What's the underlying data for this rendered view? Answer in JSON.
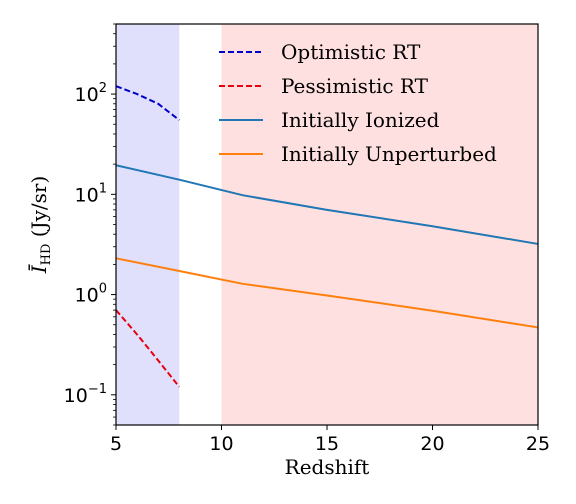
{
  "chart_data": {
    "type": "line",
    "xlabel": "Redshift",
    "ylabel": "Ī_HD (Jy/sr)",
    "ylabel_main": "Ī",
    "ylabel_sub": "HD",
    "ylabel_rest": " (Jy/sr)",
    "xlim": [
      5,
      25
    ],
    "ylim": [
      0.05,
      500
    ],
    "yscale": "log",
    "grid": false,
    "legend_placement": "upper-right",
    "x_ticks": [
      {
        "value": 5,
        "label": "5"
      },
      {
        "value": 10,
        "label": "10"
      },
      {
        "value": 15,
        "label": "15"
      },
      {
        "value": 20,
        "label": "20"
      },
      {
        "value": 25,
        "label": "25"
      }
    ],
    "y_ticks": [
      {
        "value": 0.1,
        "base": "10",
        "exp": "−1"
      },
      {
        "value": 1,
        "base": "10",
        "exp": "0"
      },
      {
        "value": 10,
        "base": "10",
        "exp": "1"
      },
      {
        "value": 100,
        "base": "10",
        "exp": "2"
      }
    ],
    "shaded_regions": [
      {
        "x0": 5,
        "x1": 8,
        "color": "#e0e0fc"
      },
      {
        "x0": 10,
        "x1": 25,
        "color": "#ffe0e0"
      }
    ],
    "series": [
      {
        "name": "Optimistic RT",
        "color": "#0000cc",
        "style": "dashed",
        "x": [
          5,
          6,
          7,
          8
        ],
        "y": [
          120,
          100,
          80,
          55
        ]
      },
      {
        "name": "Pessimistic RT",
        "color": "#e6000d",
        "style": "dashed",
        "x": [
          5,
          6,
          7,
          8
        ],
        "y": [
          0.7,
          0.4,
          0.22,
          0.12
        ]
      },
      {
        "name": "Initially Ionized",
        "color": "#1f77b4",
        "style": "solid",
        "x": [
          5,
          8,
          11,
          15,
          20,
          25
        ],
        "y": [
          19.5,
          14,
          9.8,
          7,
          4.8,
          3.2
        ]
      },
      {
        "name": "Initially Unperturbed",
        "color": "#ff7f0e",
        "style": "solid",
        "x": [
          5,
          8,
          11,
          15,
          20,
          25
        ],
        "y": [
          2.3,
          1.72,
          1.28,
          0.98,
          0.69,
          0.47
        ]
      }
    ]
  }
}
